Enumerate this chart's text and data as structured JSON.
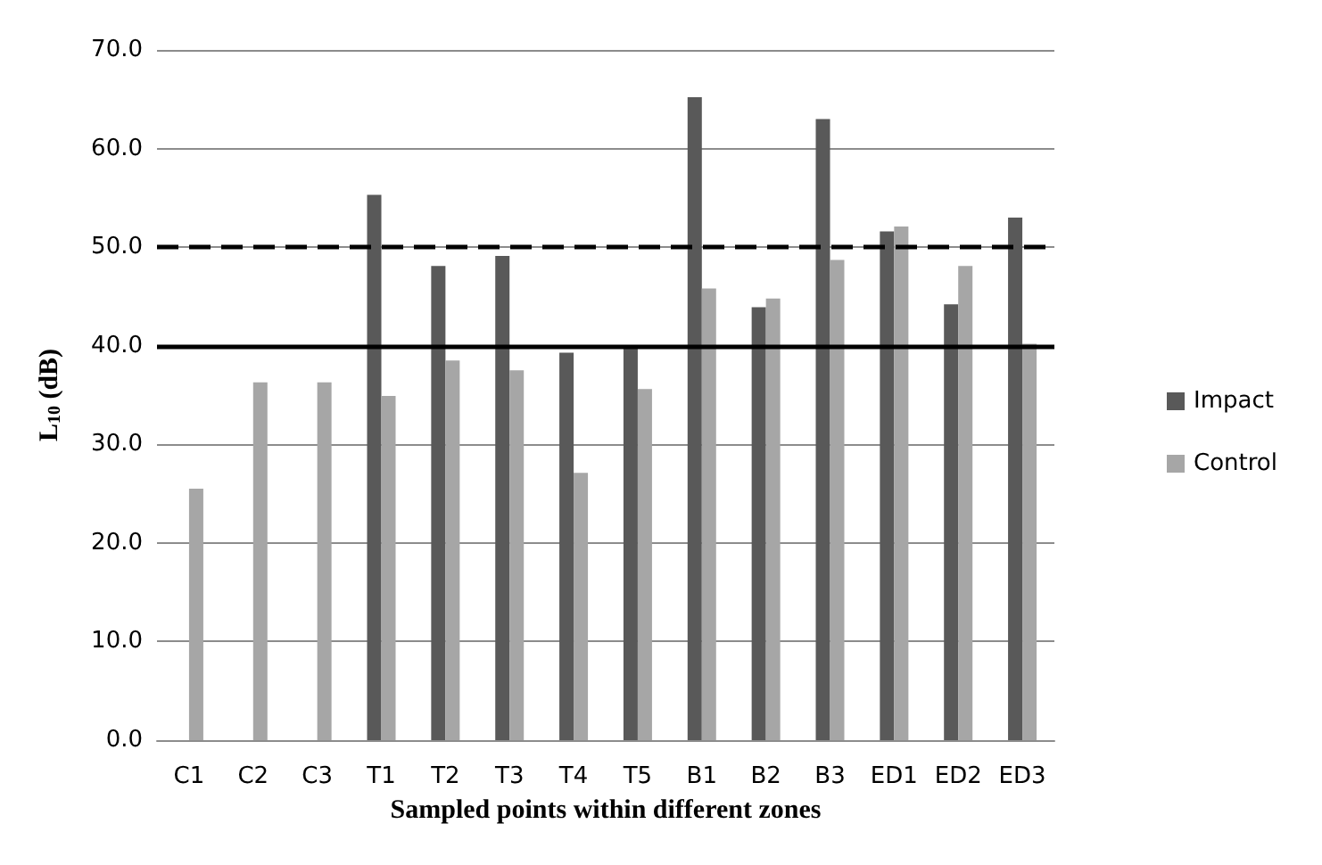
{
  "chart_data": {
    "type": "bar",
    "xlabel": "Sampled points within different zones",
    "ylabel": "L$_{10}$ (dB)",
    "categories": [
      "C1",
      "C2",
      "C3",
      "T1",
      "T2",
      "T3",
      "T4",
      "T5",
      "B1",
      "B2",
      "B3",
      "ED1",
      "ED2",
      "ED3"
    ],
    "series": [
      {
        "name": "Impact",
        "color": "#595959",
        "values": [
          null,
          null,
          null,
          55.3,
          48.1,
          49.1,
          39.3,
          40.0,
          65.2,
          43.9,
          63.0,
          51.6,
          44.2,
          53.0
        ]
      },
      {
        "name": "Control",
        "color": "#a6a6a6",
        "values": [
          25.5,
          36.3,
          36.3,
          34.9,
          38.5,
          37.5,
          27.1,
          35.6,
          45.8,
          44.8,
          48.7,
          52.1,
          48.1,
          40.2
        ]
      }
    ],
    "ylim": [
      0,
      70
    ],
    "yticks": [
      {
        "value": 0,
        "label": "0.0"
      },
      {
        "value": 10,
        "label": "10.0"
      },
      {
        "value": 20,
        "label": "20.0"
      },
      {
        "value": 30,
        "label": "30.0"
      },
      {
        "value": 40,
        "label": "40.0"
      },
      {
        "value": 50,
        "label": "50.0"
      },
      {
        "value": 60,
        "label": "60.0"
      },
      {
        "value": 70,
        "label": "70.0"
      }
    ],
    "ref_lines": [
      {
        "axis": "y",
        "value": 50,
        "color": "#000000",
        "line_style": "dashed"
      },
      {
        "axis": "y",
        "value": 40,
        "color": "#000000",
        "line_style": "solid"
      }
    ],
    "grid": "y",
    "legend": "right"
  }
}
